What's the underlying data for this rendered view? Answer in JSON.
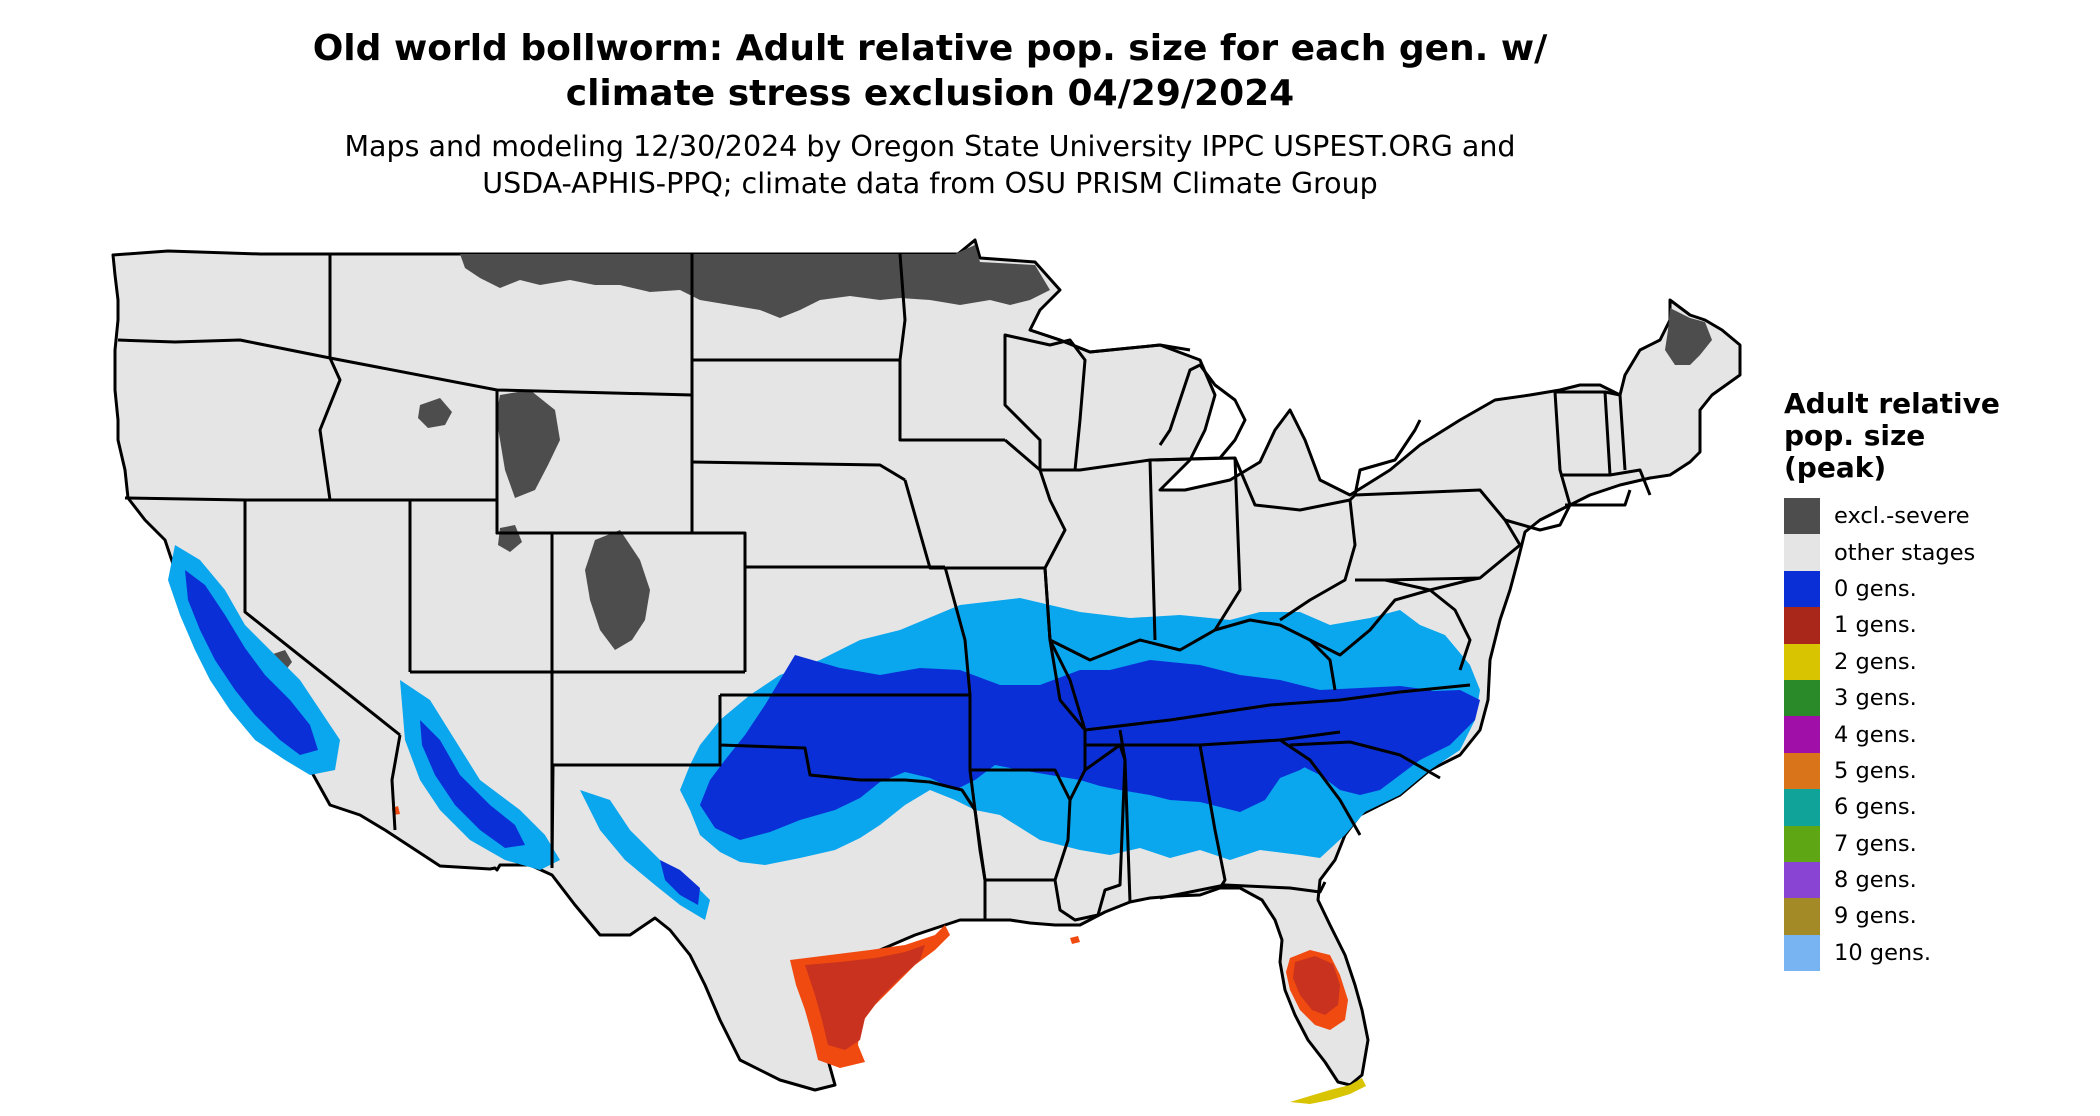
{
  "title": {
    "line1": "Old world bollworm: Adult relative pop. size for each gen. w/",
    "line2": "climate stress exclusion 04/29/2024"
  },
  "subtitle": {
    "line1": "Maps and modeling 12/30/2024 by Oregon State University IPPC USPEST.ORG and",
    "line2": "USDA-APHIS-PPQ; climate data from OSU PRISM Climate Group"
  },
  "legend": {
    "title_line1": "Adult relative",
    "title_line2": "pop. size",
    "title_line3": "(peak)",
    "items": [
      {
        "label": "excl.-severe",
        "color": "#4d4d4d"
      },
      {
        "label": "other stages",
        "color": "#e5e5e5"
      },
      {
        "label": "0 gens.",
        "color": "#0b2fd6"
      },
      {
        "label": "1 gens.",
        "color": "#a8261a"
      },
      {
        "label": "2 gens.",
        "color": "#d8c400"
      },
      {
        "label": "3 gens.",
        "color": "#2a8a2a"
      },
      {
        "label": "4 gens.",
        "color": "#a010a8"
      },
      {
        "label": "5 gens.",
        "color": "#d9741a"
      },
      {
        "label": "6 gens.",
        "color": "#10a39a"
      },
      {
        "label": "7 gens.",
        "color": "#5ea614"
      },
      {
        "label": "8 gens.",
        "color": "#8a44d4"
      },
      {
        "label": "9 gens.",
        "color": "#a38a26"
      },
      {
        "label": "10 gens.",
        "color": "#78b4f2"
      }
    ]
  },
  "map": {
    "colors": {
      "land": "#e5e5e5",
      "excl_severe": "#4d4d4d",
      "zero_gens_dark": "#0b2fd6",
      "zero_gens_light": "#0aa6ee",
      "one_gen": "#c8321e",
      "one_gen_edge": "#f04a10",
      "two_gens": "#d8c400",
      "border": "#000000"
    }
  }
}
